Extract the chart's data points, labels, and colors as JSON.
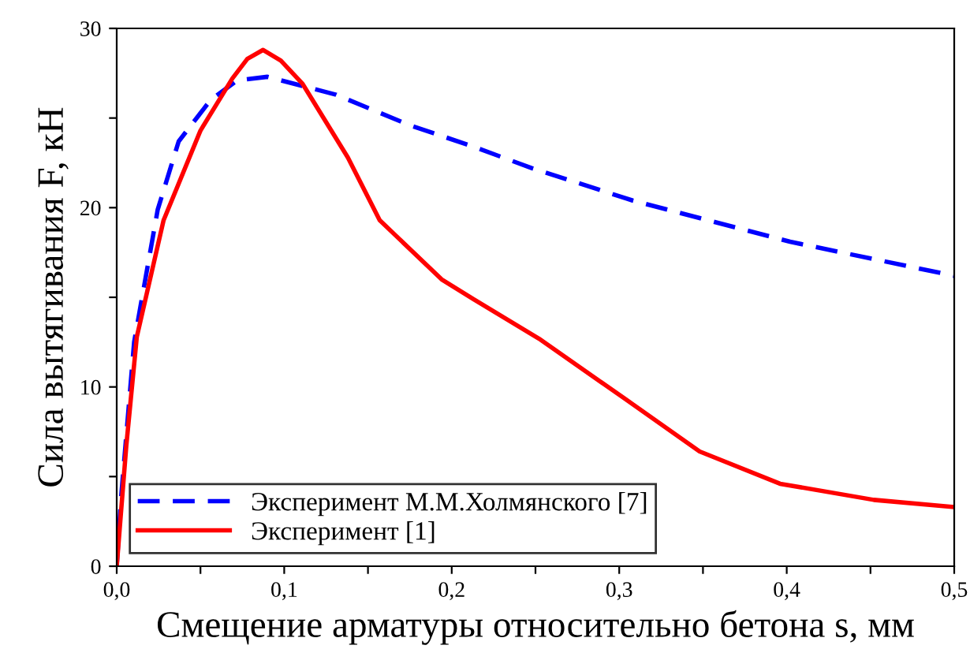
{
  "chart_data": {
    "type": "line",
    "xlabel": "Смещение арматуры относительно бетона s, мм",
    "ylabel": "Сила вытягивания F, кН",
    "xlim": [
      0,
      0.5
    ],
    "ylim": [
      0,
      30
    ],
    "xticks": [
      {
        "value": 0,
        "label": "0,0"
      },
      {
        "value": 0.05,
        "label": null
      },
      {
        "value": 0.1,
        "label": "0,1"
      },
      {
        "value": 0.15,
        "label": null
      },
      {
        "value": 0.2,
        "label": "0,2"
      },
      {
        "value": 0.25,
        "label": null
      },
      {
        "value": 0.3,
        "label": "0,3"
      },
      {
        "value": 0.35,
        "label": null
      },
      {
        "value": 0.4,
        "label": "0,4"
      },
      {
        "value": 0.45,
        "label": null
      },
      {
        "value": 0.5,
        "label": "0,5"
      }
    ],
    "yticks": [
      0,
      {
        "value": 5,
        "label": null
      },
      10,
      {
        "value": 15,
        "label": null
      },
      20,
      {
        "value": 25,
        "label": null
      },
      30
    ],
    "legend": "bottom left",
    "grid": false,
    "marker": "none",
    "series": [
      {
        "name": "Эксперимент М.М.Холмянского [7]",
        "color": "#0000ff",
        "line_style": "dashed",
        "x": [
          0,
          0.0025,
          0.0104,
          0.0245,
          0.037,
          0.056,
          0.072,
          0.09,
          0.131,
          0.175,
          0.213,
          0.248,
          0.308,
          0.402,
          0.5
        ],
        "values": [
          0,
          3.7,
          12.5,
          19.9,
          23.7,
          26.0,
          27.1,
          27.3,
          26.3,
          24.6,
          23.4,
          22.2,
          20.4,
          18.1,
          16.2
        ]
      },
      {
        "name": "Эксперимент [1]",
        "color": "#ff0000",
        "line_style": "solid",
        "x": [
          0,
          0.0057,
          0.012,
          0.028,
          0.05,
          0.069,
          0.078,
          0.0874,
          0.098,
          0.111,
          0.138,
          0.157,
          0.194,
          0.213,
          0.252,
          0.304,
          0.348,
          0.396,
          0.452,
          0.5
        ],
        "values": [
          0,
          6.7,
          12.8,
          19.3,
          24.3,
          27.2,
          28.3,
          28.8,
          28.2,
          26.9,
          22.8,
          19.3,
          16.0,
          14.9,
          12.7,
          9.3,
          6.4,
          4.6,
          3.7,
          3.3
        ]
      }
    ]
  }
}
